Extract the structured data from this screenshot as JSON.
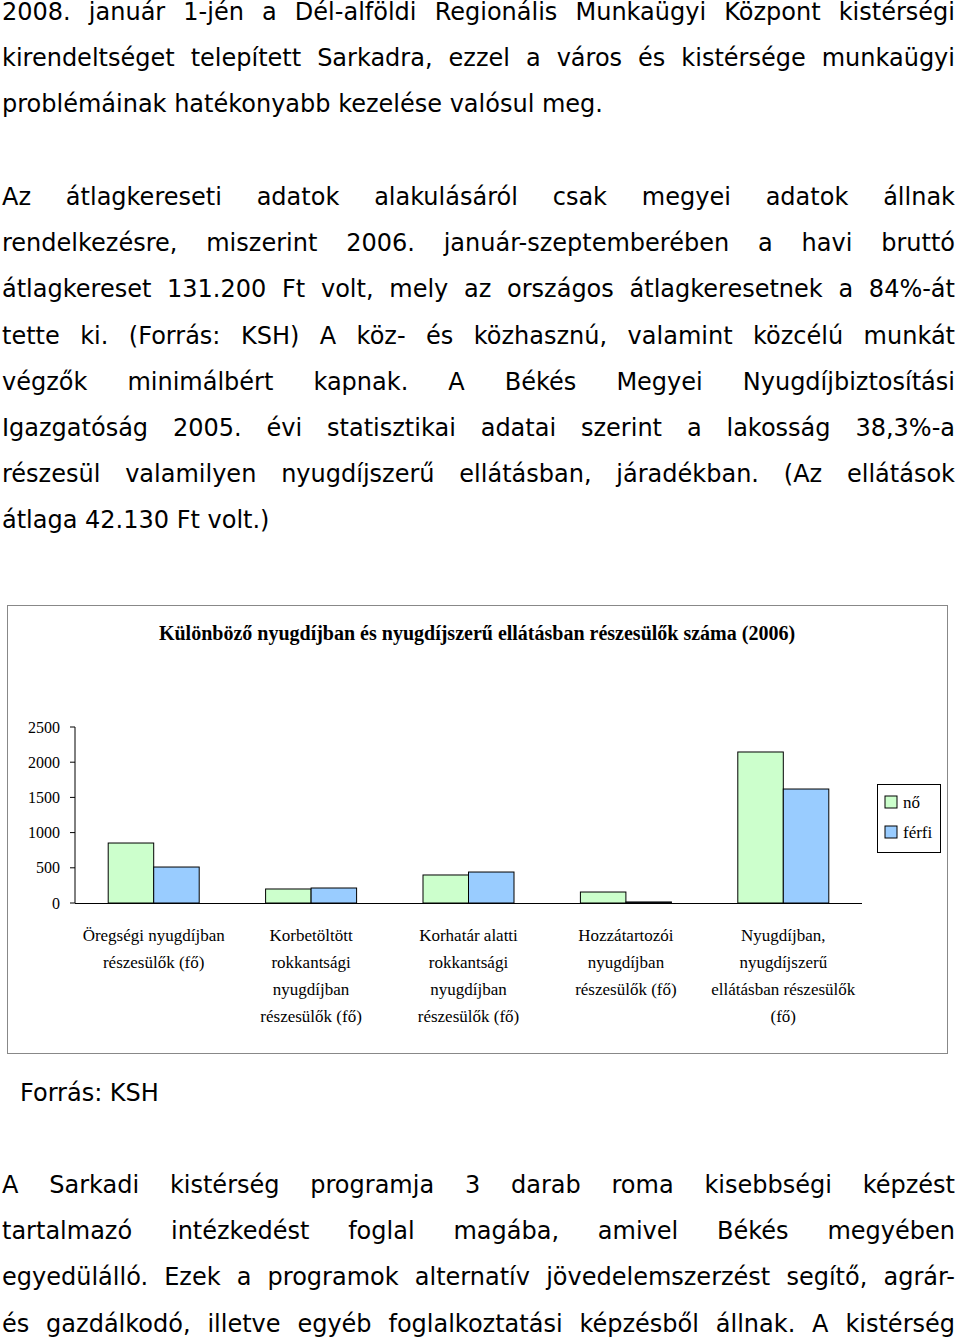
{
  "paragraphs": [
    [
      "2008. január 1-jén a Dél-alföldi Regionális Munkaügyi Központ kistérségi",
      "kirendeltséget telepített Sarkadra, ezzel a város és kistérsége munkaügyi",
      "problémáinak hatékonyabb kezelése valósul meg."
    ],
    [
      "Az átlagkereseti adatok alakulásáról csak megyei adatok állnak",
      "rendelkezésre, miszerint 2006. január-szeptemberében a havi bruttó",
      "átlagkereset 131.200 Ft volt, mely az országos átlagkeresetnek a 84%-át",
      "tette ki. (Forrás: KSH) A köz- és közhasznú, valamint közcélú munkát",
      "végzők minimálbért kapnak. A Békés Megyei Nyugdíjbiztosítási",
      "Igazgatóság 2005. évi statisztikai adatai szerint a lakosság 38,3%-a",
      "részesül valamilyen nyugdíjszerű ellátásban, járadékban. (Az ellátások",
      "átlaga 42.130 Ft volt.)"
    ]
  ],
  "chart_data": {
    "type": "bar",
    "title": "Különböző nyugdíjban és nyugdíjszerű ellátásban részesülők száma (2006)",
    "categories": [
      "Öregségi nyugdíjban részesülők (fő)",
      "Korbetöltött rokkantsági nyugdíjban részesülők (fő)",
      "Korhatár alatti rokkantsági nyugdíjban részesülők (fő)",
      "Hozzátartozói nyugdíjban részesülők (fő)",
      "Nyugdíjban, nyugdíjszerű ellátásban részesülők (fő)"
    ],
    "series": [
      {
        "name": "nő",
        "color": "#ccffcc",
        "values": [
          852,
          199,
          398,
          156,
          2145
        ]
      },
      {
        "name": "férfi",
        "color": "#99ccff",
        "values": [
          511,
          213,
          440,
          15,
          1619
        ]
      }
    ],
    "ylim": [
      0,
      2500
    ],
    "yticks": [
      0,
      500,
      1000,
      1500,
      2000,
      2500
    ],
    "grid": false,
    "legend": "right"
  },
  "source": "Forrás: KSH",
  "paragraphs_after": [
    [
      "A Sarkadi kistérség programja 3 darab roma kisebbségi képzést",
      "tartalmazó intézkedést foglal magába, amivel Békés megyében",
      "egyedülálló. Ezek a programok alternatív jövedelemszerzést segítő, agrár-",
      "és gazdálkodó, illetve egyéb foglalkoztatási képzésből állnak. A kistérség"
    ]
  ]
}
